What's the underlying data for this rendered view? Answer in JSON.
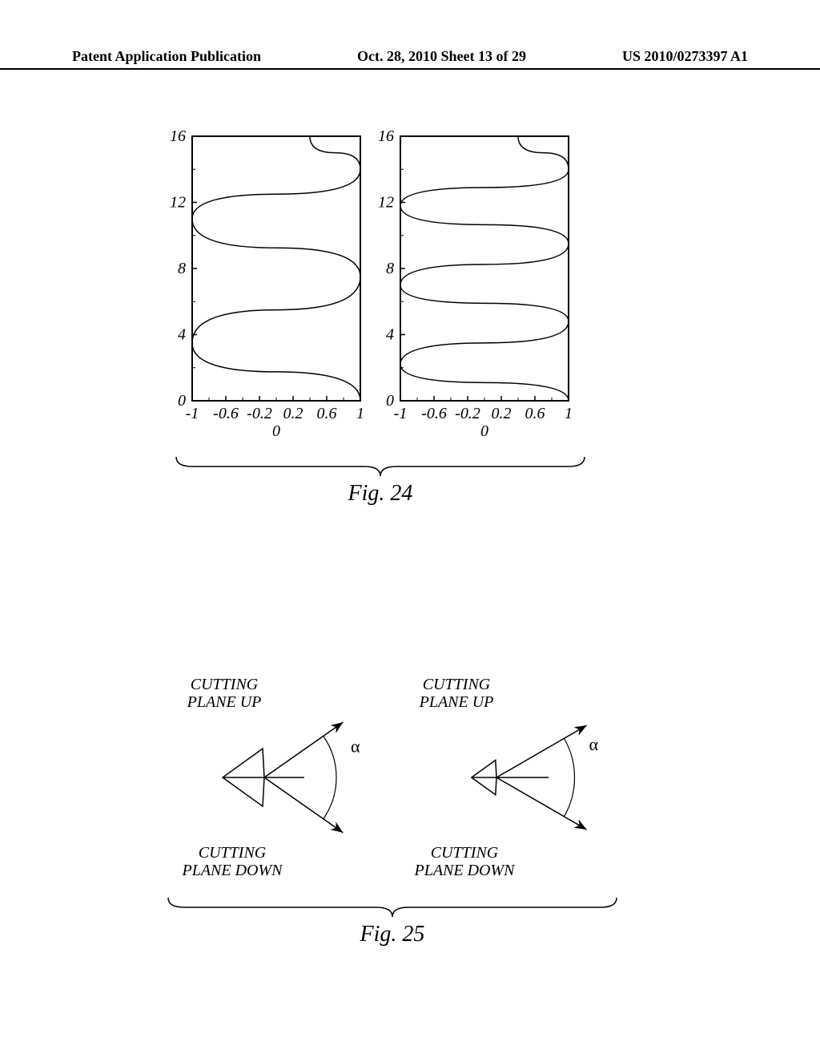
{
  "header": {
    "left": "Patent Application Publication",
    "center": "Oct. 28, 2010  Sheet 13 of 29",
    "right": "US 2010/0273397 A1"
  },
  "fig24": {
    "caption": "Fig. 24",
    "left_chart": {
      "type": "line",
      "xlim": [
        -1,
        1
      ],
      "ylim": [
        0,
        16
      ],
      "x_ticks_major": [
        -1,
        0,
        1
      ],
      "x_ticks_labels": [
        "-1",
        "-0.6",
        "-0.2",
        "0.2",
        "0.6",
        "1"
      ],
      "x_tick_positions": [
        -1,
        -0.6,
        -0.2,
        0.2,
        0.6,
        1
      ],
      "y_ticks": [
        0,
        4,
        8,
        12,
        16
      ],
      "y_ticks_labels": [
        "0",
        "4",
        "8",
        "12",
        "16"
      ],
      "zero_label": "0",
      "curve_points": [
        [
          1,
          0
        ],
        [
          -1,
          3.5
        ],
        [
          1,
          7.5
        ],
        [
          -1,
          11
        ],
        [
          1,
          14
        ],
        [
          0.4,
          16
        ]
      ],
      "line_color": "#000000",
      "line_width": 1.5,
      "border_color": "#000000",
      "background_color": "#ffffff",
      "axis_fontsize": 20,
      "axis_fontstyle": "italic"
    },
    "right_chart": {
      "type": "line",
      "xlim": [
        -1,
        1
      ],
      "ylim": [
        0,
        16
      ],
      "x_ticks_labels": [
        "-1",
        "-0.6",
        "-0.2",
        "0.2",
        "0.6",
        "1"
      ],
      "x_tick_positions": [
        -1,
        -0.6,
        -0.2,
        0.2,
        0.6,
        1
      ],
      "y_ticks": [
        0,
        4,
        8,
        12,
        16
      ],
      "y_ticks_labels": [
        "0",
        "4",
        "8",
        "12",
        "16"
      ],
      "zero_label": "0",
      "curve_points": [
        [
          1,
          0
        ],
        [
          -1,
          2.2
        ],
        [
          1,
          4.8
        ],
        [
          -1,
          7
        ],
        [
          1,
          9.5
        ],
        [
          -1,
          11.8
        ],
        [
          1,
          14
        ],
        [
          0.4,
          16
        ]
      ],
      "line_color": "#000000",
      "line_width": 1.5,
      "border_color": "#000000",
      "background_color": "#ffffff",
      "axis_fontsize": 20,
      "axis_fontstyle": "italic"
    }
  },
  "fig25": {
    "caption": "Fig. 25",
    "left_diagram": {
      "label_up": "CUTTING\nPLANE UP",
      "label_down": "CUTTING\nPLANE DOWN",
      "alpha_symbol": "α",
      "angle_deg": 70,
      "arrow_len": 120,
      "triangle_size": 40,
      "center_line_len": 50,
      "line_color": "#000000",
      "line_width": 1.5
    },
    "right_diagram": {
      "label_up": "CUTTING\nPLANE UP",
      "label_down": "CUTTING\nPLANE DOWN",
      "alpha_symbol": "α",
      "angle_deg": 60,
      "arrow_len": 130,
      "triangle_size": 24,
      "center_line_len": 65,
      "line_color": "#000000",
      "line_width": 1.5
    }
  }
}
